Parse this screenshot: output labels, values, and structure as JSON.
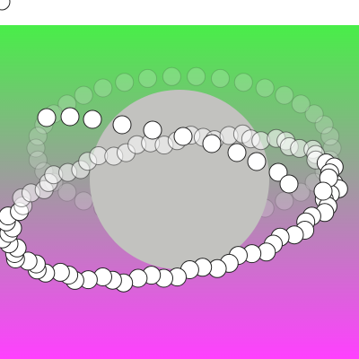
{
  "scene": {
    "background_color": "#ffffff",
    "gradient_top_color": "#48ee48",
    "gradient_bottom_color": "#ff40ff",
    "sphere_color": "#c2c2bf",
    "dot_fill": "#ffffff",
    "dot_stroke": "#222222",
    "ring_front_dots": 78,
    "ring_back_dots": 38
  }
}
